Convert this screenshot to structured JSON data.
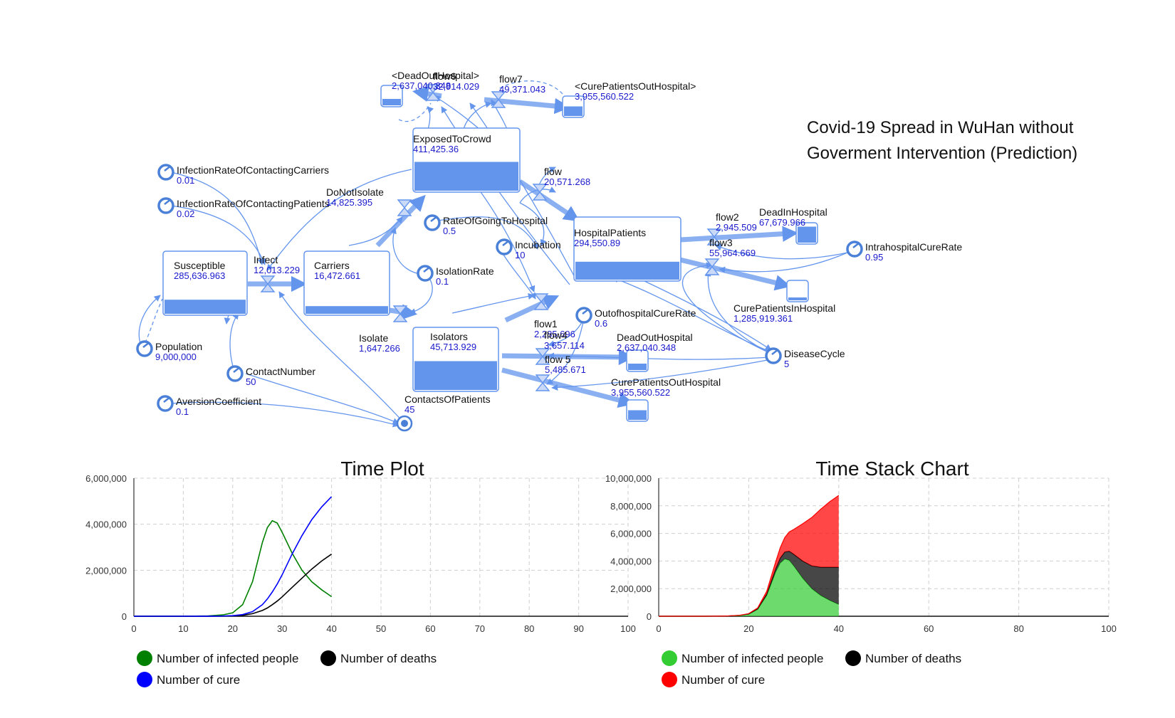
{
  "diagram": {
    "title_line1": "Covid-19 Spread in WuHan without",
    "title_line2": "Goverment Intervention (Prediction)",
    "stocks": [
      {
        "name": "Susceptible",
        "value": "285,636.963",
        "level": 0.22
      },
      {
        "name": "Carriers",
        "value": "16,472.661",
        "level": 0.12
      },
      {
        "name": "ExposedToCrowd",
        "value": "411,425.36",
        "level": 0.45
      },
      {
        "name": "Isolators",
        "value": "45,713.929",
        "level": 0.45
      },
      {
        "name": "HospitalPatients",
        "value": "294,550.89",
        "level": 0.28
      },
      {
        "name": "DeadInHospital",
        "value": "67,679.966",
        "level": 0.75
      },
      {
        "name": "CurePatientsInHospital",
        "value": "1,285,919.361",
        "level": 0.1
      },
      {
        "name": "DeadOutHospital",
        "value": "2,637,040.348",
        "level": 0.3
      },
      {
        "name": "CurePatientsOutHospital",
        "value": "3,955,560.522",
        "level": 0.45
      },
      {
        "name": "<DeadOutHospital>",
        "value": "2,637,040.348",
        "level": 0.3
      },
      {
        "name": "<CurePatientsOutHospital>",
        "value": "3,955,560.522",
        "level": 0.45
      }
    ],
    "flows": [
      {
        "name": "Infect",
        "value": "12,013.229"
      },
      {
        "name": "DoNotIsolate",
        "value": "14,825.395"
      },
      {
        "name": "Isolate",
        "value": "1,647.266"
      },
      {
        "name": "flow",
        "value": "20,571.268"
      },
      {
        "name": "flow1",
        "value": "2,285.696"
      },
      {
        "name": "flow4",
        "value": "3,657.114"
      },
      {
        "name": "flow 5",
        "value": "5,485.671"
      },
      {
        "name": "flow2",
        "value": "2,945.509"
      },
      {
        "name": "flow3",
        "value": "55,964.669"
      },
      {
        "name": "flow6",
        "value": "32,914.029"
      },
      {
        "name": "flow7",
        "value": "49,371.043"
      }
    ],
    "variables": [
      {
        "name": "InfectionRateOfContactingCarriers",
        "value": "0.01"
      },
      {
        "name": "InfectionRateOfContactingPatients",
        "value": "0.02"
      },
      {
        "name": "Population",
        "value": "9,000,000"
      },
      {
        "name": "ContactNumber",
        "value": "50"
      },
      {
        "name": "AversionCoefficient",
        "value": "0.1"
      },
      {
        "name": "ContactsOfPatients",
        "value": "45"
      },
      {
        "name": "RateOfGoingToHospital",
        "value": "0.5"
      },
      {
        "name": "IsolationRate",
        "value": "0.1"
      },
      {
        "name": "Incubation",
        "value": "10"
      },
      {
        "name": "OutofhospitalCureRate",
        "value": "0.6"
      },
      {
        "name": "IntrahospitalCureRate",
        "value": "0.95"
      },
      {
        "name": "DiseaseCycle",
        "value": "5"
      }
    ]
  },
  "chart_data": [
    {
      "type": "line",
      "title": "Time Plot",
      "xlim": [
        0,
        100
      ],
      "ylim": [
        0,
        6000000
      ],
      "x_ticks": [
        0,
        10,
        20,
        30,
        40,
        50,
        60,
        70,
        80,
        90,
        100
      ],
      "y_ticks": [
        0,
        2000000,
        4000000,
        6000000
      ],
      "y_tick_labels": [
        "0",
        "2,000,000",
        "4,000,000",
        "6,000,000"
      ],
      "grid": true,
      "legend_position": "bottom-left",
      "x": [
        0,
        10,
        15,
        18,
        20,
        22,
        24,
        26,
        27,
        28,
        29,
        30,
        32,
        34,
        36,
        38,
        40
      ],
      "series": [
        {
          "name": "Number of infected people",
          "color": "#008000",
          "values": [
            0,
            1000,
            15000,
            60000,
            150000,
            500000,
            1500000,
            3200000,
            3850000,
            4150000,
            4050000,
            3650000,
            2750000,
            2000000,
            1500000,
            1150000,
            850000
          ]
        },
        {
          "name": "Number of deaths",
          "color": "#000000",
          "values": [
            0,
            0,
            1000,
            5000,
            15000,
            40000,
            110000,
            250000,
            360000,
            500000,
            660000,
            840000,
            1250000,
            1650000,
            2050000,
            2400000,
            2700000
          ]
        },
        {
          "name": "Number of cure",
          "color": "#0000ff",
          "values": [
            0,
            0,
            2000,
            8000,
            25000,
            70000,
            200000,
            500000,
            750000,
            1050000,
            1400000,
            1800000,
            2700000,
            3500000,
            4200000,
            4750000,
            5200000
          ]
        }
      ]
    },
    {
      "type": "area",
      "stacked": true,
      "title": "Time Stack Chart",
      "xlim": [
        0,
        100
      ],
      "ylim": [
        0,
        10000000
      ],
      "x_ticks": [
        0,
        20,
        40,
        60,
        80,
        100
      ],
      "y_ticks": [
        0,
        2000000,
        4000000,
        6000000,
        8000000,
        10000000
      ],
      "y_tick_labels": [
        "0",
        "2,000,000",
        "4,000,000",
        "6,000,000",
        "8,000,000",
        "10,000,000"
      ],
      "grid": true,
      "legend_position": "bottom-left",
      "x": [
        0,
        10,
        15,
        18,
        20,
        22,
        24,
        26,
        27,
        28,
        29,
        30,
        32,
        34,
        36,
        38,
        40
      ],
      "series": [
        {
          "name": "Number of infected people",
          "color": "#33cc33",
          "values": [
            0,
            1000,
            15000,
            60000,
            150000,
            500000,
            1500000,
            3200000,
            3850000,
            4150000,
            4050000,
            3650000,
            2750000,
            2000000,
            1500000,
            1150000,
            850000
          ]
        },
        {
          "name": "Number of deaths",
          "color": "#000000",
          "values": [
            0,
            0,
            1000,
            5000,
            15000,
            40000,
            110000,
            250000,
            360000,
            500000,
            660000,
            840000,
            1250000,
            1650000,
            2050000,
            2400000,
            2700000
          ]
        },
        {
          "name": "Number of cure",
          "color": "#ff0000",
          "values": [
            0,
            0,
            2000,
            8000,
            25000,
            70000,
            200000,
            500000,
            750000,
            1050000,
            1400000,
            1800000,
            2700000,
            3500000,
            4200000,
            4750000,
            5200000
          ]
        }
      ]
    }
  ]
}
